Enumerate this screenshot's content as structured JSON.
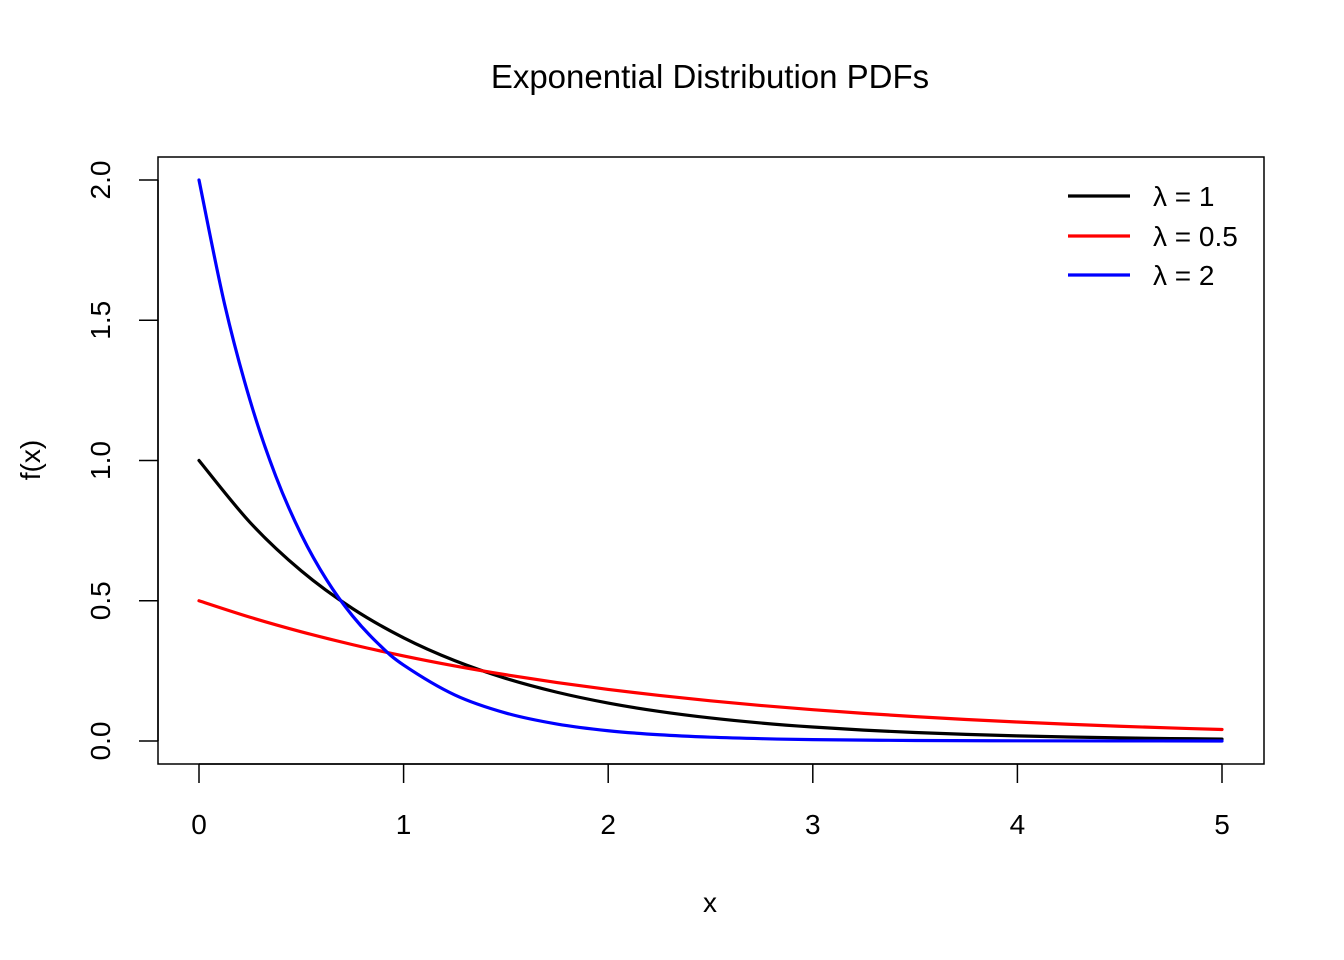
{
  "chart_data": {
    "type": "line",
    "title": "Exponential Distribution PDFs",
    "xlabel": "x",
    "ylabel": "f(x)",
    "xlim": [
      0,
      5
    ],
    "ylim": [
      0,
      2
    ],
    "x_ticks": [
      "0",
      "1",
      "2",
      "3",
      "4",
      "5"
    ],
    "y_ticks": [
      "0.0",
      "0.5",
      "1.0",
      "1.5",
      "2.0"
    ],
    "grid": false,
    "legend_position": "top-right",
    "series": [
      {
        "name": "λ = 1",
        "color": "#000000",
        "x": [
          0,
          0.25,
          0.5,
          0.75,
          1,
          1.25,
          1.5,
          1.75,
          2,
          2.25,
          2.5,
          2.75,
          3,
          3.25,
          3.5,
          3.75,
          4,
          4.25,
          4.5,
          4.75,
          5
        ],
        "y": [
          1.0,
          0.7788,
          0.6065,
          0.4724,
          0.3679,
          0.2865,
          0.2231,
          0.1738,
          0.1353,
          0.1054,
          0.0821,
          0.0639,
          0.0498,
          0.0388,
          0.0302,
          0.0235,
          0.0183,
          0.0143,
          0.0111,
          0.0087,
          0.0067
        ]
      },
      {
        "name": "λ = 0.5",
        "color": "#ff0000",
        "x": [
          0,
          0.25,
          0.5,
          0.75,
          1,
          1.25,
          1.5,
          1.75,
          2,
          2.25,
          2.5,
          2.75,
          3,
          3.25,
          3.5,
          3.75,
          4,
          4.25,
          4.5,
          4.75,
          5
        ],
        "y": [
          0.5,
          0.4412,
          0.3894,
          0.3436,
          0.3033,
          0.2676,
          0.2362,
          0.2084,
          0.1839,
          0.1623,
          0.1433,
          0.1264,
          0.1116,
          0.0985,
          0.0869,
          0.0767,
          0.0677,
          0.0597,
          0.0527,
          0.0465,
          0.041
        ]
      },
      {
        "name": "λ = 2",
        "color": "#0000ff",
        "x": [
          0,
          0.125,
          0.25,
          0.375,
          0.5,
          0.625,
          0.75,
          0.875,
          1,
          1.25,
          1.5,
          1.75,
          2,
          2.25,
          2.5,
          2.75,
          3,
          3.5,
          4,
          4.5,
          5
        ],
        "y": [
          2.0,
          1.5576,
          1.2131,
          0.9447,
          0.7358,
          0.573,
          0.4463,
          0.3475,
          0.2707,
          0.1642,
          0.0996,
          0.0604,
          0.0366,
          0.0222,
          0.0135,
          0.0082,
          0.005,
          0.0018,
          0.0007,
          0.0002,
          0.0001
        ]
      }
    ]
  }
}
